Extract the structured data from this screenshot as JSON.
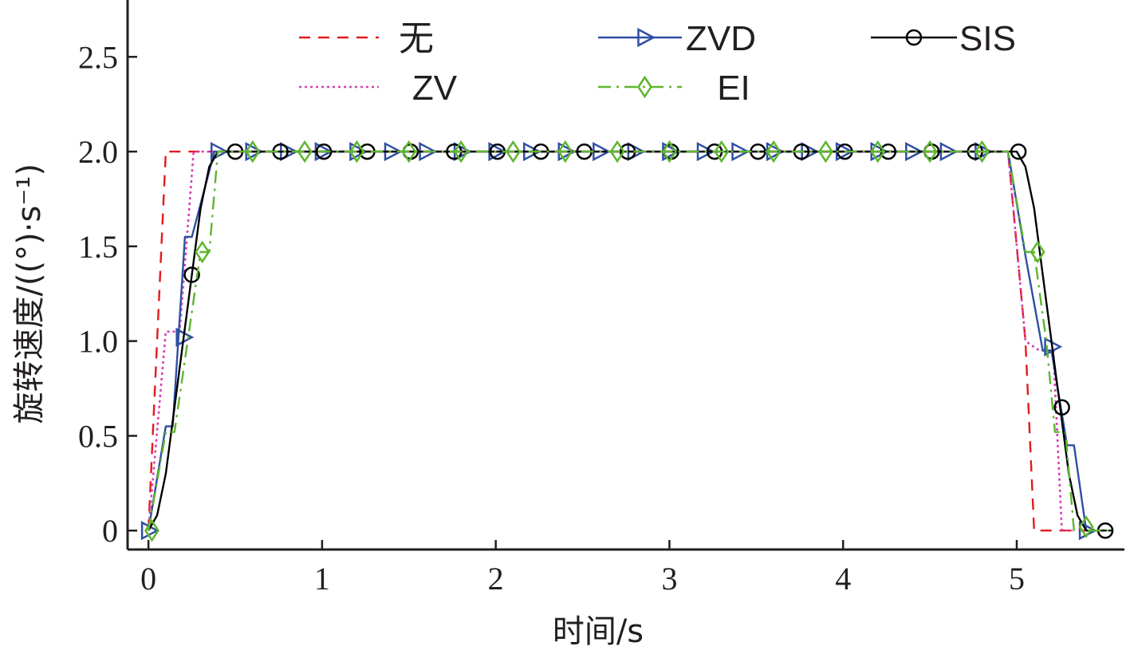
{
  "chart_data": {
    "type": "line",
    "title": "",
    "xlabel": "时间/s",
    "ylabel": "旋转速度/((°)·s⁻¹)",
    "xlim": [
      -0.12,
      5.62
    ],
    "ylim": [
      -0.1,
      2.8
    ],
    "xticks": [
      0,
      1,
      2,
      3,
      4,
      5
    ],
    "xtick_labels": [
      "0",
      "1",
      "2",
      "3",
      "4",
      "5"
    ],
    "yticks": [
      0,
      0.5,
      1.0,
      1.5,
      2.0,
      2.5
    ],
    "ytick_labels": [
      "0",
      "0.5",
      "1.0",
      "1.5",
      "2.0",
      "2.5"
    ],
    "grid": false,
    "legend_position": "top (inside plot, 3 columns)",
    "series": [
      {
        "name": "无",
        "color": "#e31a1c",
        "line_style": "dashed",
        "marker": "none",
        "x": [
          0.0,
          0.1,
          0.35,
          4.95,
          5.05,
          5.1,
          5.4
        ],
        "y": [
          0.0,
          2.0,
          2.0,
          2.0,
          1.0,
          0.0,
          0.0
        ]
      },
      {
        "name": "ZV",
        "color": "#d63fb2",
        "line_style": "dotted",
        "marker": "none",
        "x": [
          0.0,
          0.1,
          0.18,
          0.26,
          0.35,
          4.95,
          5.05,
          5.13,
          5.21,
          5.26,
          5.32
        ],
        "y": [
          0.0,
          1.05,
          1.05,
          2.0,
          2.0,
          2.0,
          1.0,
          0.95,
          0.95,
          0.0,
          0.0
        ]
      },
      {
        "name": "ZVD",
        "color": "#2e4fa3",
        "line_style": "solid",
        "marker": "triangle-right",
        "x": [
          0.0,
          0.1,
          0.14,
          0.21,
          0.25,
          0.38,
          0.45,
          4.95,
          5.05,
          5.15,
          5.2,
          5.29,
          5.33,
          5.4,
          5.45
        ],
        "y": [
          0.0,
          0.55,
          0.55,
          1.55,
          1.55,
          2.0,
          2.0,
          2.0,
          1.45,
          0.95,
          0.95,
          0.45,
          0.45,
          0.0,
          0.0
        ],
        "marker_x": [
          0.0,
          0.2,
          0.4,
          0.6,
          0.8,
          1.0,
          1.2,
          1.4,
          1.6,
          1.8,
          2.0,
          2.2,
          2.4,
          2.6,
          2.8,
          3.0,
          3.2,
          3.4,
          3.6,
          3.8,
          4.0,
          4.2,
          4.4,
          4.6,
          4.8,
          5.2,
          5.4
        ],
        "marker_y": [
          0.0,
          1.02,
          2.0,
          2.0,
          2.0,
          2.0,
          2.0,
          2.0,
          2.0,
          2.0,
          2.0,
          2.0,
          2.0,
          2.0,
          2.0,
          2.0,
          2.0,
          2.0,
          2.0,
          2.0,
          2.0,
          2.0,
          2.0,
          2.0,
          2.0,
          0.97,
          0.0
        ]
      },
      {
        "name": "SIS",
        "color": "#000000",
        "line_style": "solid",
        "marker": "circle",
        "x": [
          0.0,
          0.05,
          0.1,
          0.15,
          0.2,
          0.25,
          0.3,
          0.35,
          0.4,
          0.45,
          5.0,
          5.05,
          5.1,
          5.15,
          5.2,
          5.25,
          5.3,
          5.35,
          5.4,
          5.45,
          5.5,
          5.55
        ],
        "y": [
          0.0,
          0.08,
          0.3,
          0.65,
          1.0,
          1.35,
          1.7,
          1.92,
          2.0,
          2.0,
          2.0,
          1.92,
          1.7,
          1.35,
          1.0,
          0.65,
          0.3,
          0.08,
          0.0,
          0.0,
          0.0,
          0.0
        ],
        "marker_x": [
          0.25,
          0.5,
          0.76,
          1.01,
          1.26,
          1.51,
          1.76,
          2.01,
          2.26,
          2.51,
          2.76,
          3.01,
          3.26,
          3.51,
          3.76,
          4.01,
          4.26,
          4.51,
          4.76,
          5.01,
          5.26,
          5.51
        ],
        "marker_y": [
          1.35,
          2.0,
          2.0,
          2.0,
          2.0,
          2.0,
          2.0,
          2.0,
          2.0,
          2.0,
          2.0,
          2.0,
          2.0,
          2.0,
          2.0,
          2.0,
          2.0,
          2.0,
          2.0,
          2.0,
          0.65,
          0.0
        ]
      },
      {
        "name": "EI",
        "color": "#5eb62e",
        "line_style": "dash-dot",
        "marker": "diamond",
        "x": [
          0.0,
          0.1,
          0.15,
          0.3,
          0.35,
          0.4,
          0.45,
          4.95,
          5.05,
          5.1,
          5.17,
          5.22,
          5.28,
          5.33,
          5.4,
          5.55
        ],
        "y": [
          0.0,
          0.52,
          0.52,
          1.47,
          1.47,
          2.0,
          2.0,
          2.0,
          1.47,
          1.47,
          1.0,
          0.52,
          0.52,
          0.0,
          0.0,
          0.0
        ],
        "marker_x": [
          0.02,
          0.31,
          0.6,
          0.9,
          1.2,
          1.5,
          1.8,
          2.1,
          2.4,
          2.7,
          3.0,
          3.3,
          3.6,
          3.9,
          4.2,
          4.5,
          4.8,
          5.12,
          5.4
        ],
        "marker_y": [
          0.0,
          1.47,
          2.0,
          2.0,
          2.0,
          2.0,
          2.0,
          2.0,
          2.0,
          2.0,
          2.0,
          2.0,
          2.0,
          2.0,
          2.0,
          2.0,
          2.0,
          1.47,
          0.02
        ]
      }
    ]
  }
}
